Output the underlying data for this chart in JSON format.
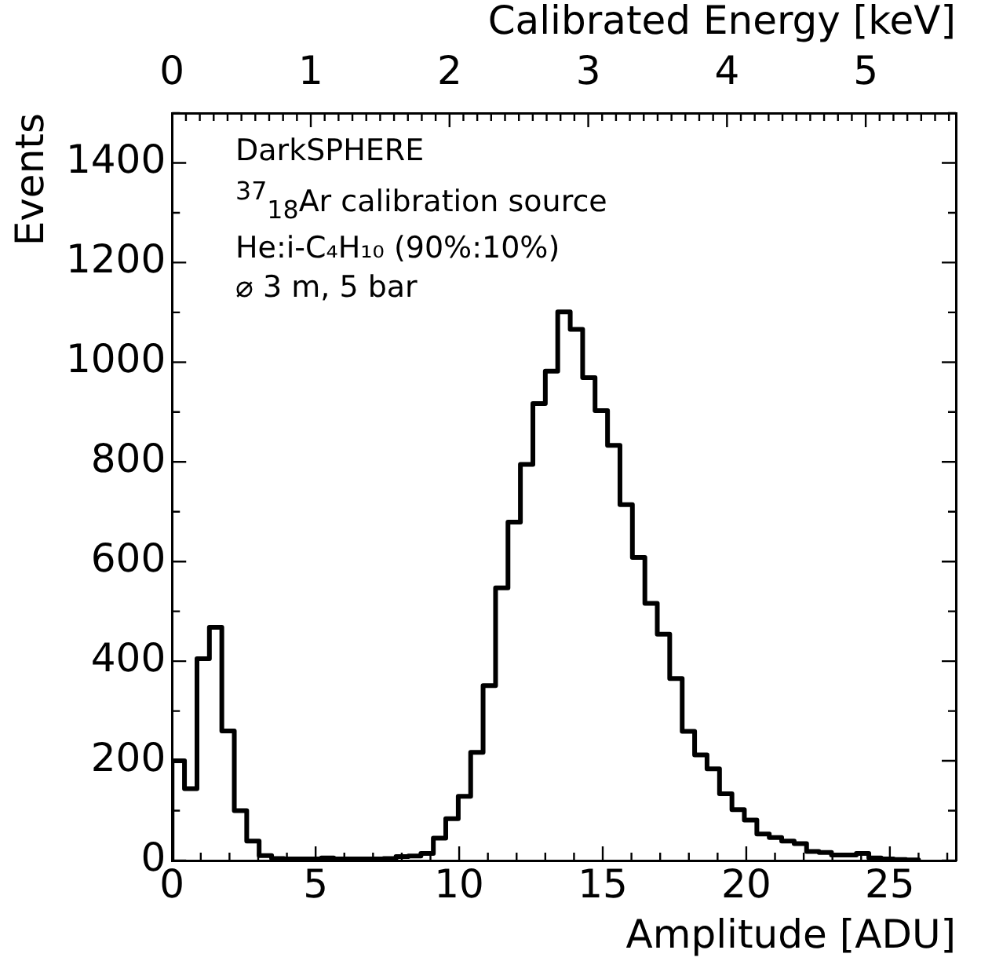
{
  "chart_data": {
    "type": "histogram",
    "xlabel": "Amplitude [ADU]",
    "ylabel": "Events",
    "x2label": "Calibrated Energy [keV]",
    "annotations": [
      "DarkSPHERE",
      "$^{37}$$_{18}$Ar calibration source",
      "He:i-C₄H₁₀ (90%:10%)",
      "⌀ 3 m, 5 bar"
    ],
    "bins": [
      0,
      0.43,
      0.87,
      1.3,
      1.73,
      2.17,
      2.6,
      3.03,
      3.47,
      3.9,
      4.33,
      4.77,
      5.2,
      5.63,
      6.07,
      6.5,
      6.93,
      7.37,
      7.8,
      8.23,
      8.67,
      9.1,
      9.53,
      9.97,
      10.4,
      10.83,
      11.27,
      11.7,
      12.13,
      12.57,
      13,
      13.43,
      13.87,
      14.3,
      14.73,
      15.17,
      15.6,
      16.03,
      16.47,
      16.9,
      17.33,
      17.77,
      18.2,
      18.63,
      19.07,
      19.5,
      19.93,
      20.37,
      20.8,
      21.23,
      21.67,
      22.1,
      22.53,
      22.97,
      23.4,
      23.83,
      24.27,
      24.7,
      25.13,
      25.57,
      26
    ],
    "values": [
      200,
      144,
      405,
      468,
      260,
      100,
      39,
      10,
      4,
      3,
      3,
      3,
      5,
      3,
      3,
      3,
      3,
      4,
      8,
      9,
      14,
      45,
      84,
      129,
      217,
      351,
      547,
      679,
      795,
      917,
      982,
      1101,
      1066,
      969,
      903,
      833,
      714,
      608,
      516,
      454,
      365,
      259,
      212,
      184,
      134,
      102,
      81,
      53,
      46,
      39,
      34,
      18,
      16,
      11,
      11,
      14,
      5,
      3,
      2,
      1
    ],
    "color": "#000000",
    "xlim": [
      0,
      27.3
    ],
    "xticks": [
      0,
      5,
      10,
      15,
      20,
      25
    ],
    "ylim": [
      0,
      1500
    ],
    "yticks": [
      0,
      200,
      400,
      600,
      800,
      1000,
      1200,
      1400
    ],
    "x2lim": [
      0,
      5.65
    ],
    "x2ticks": [
      0,
      1,
      2,
      3,
      4,
      5
    ],
    "grid": false,
    "legend": false
  }
}
